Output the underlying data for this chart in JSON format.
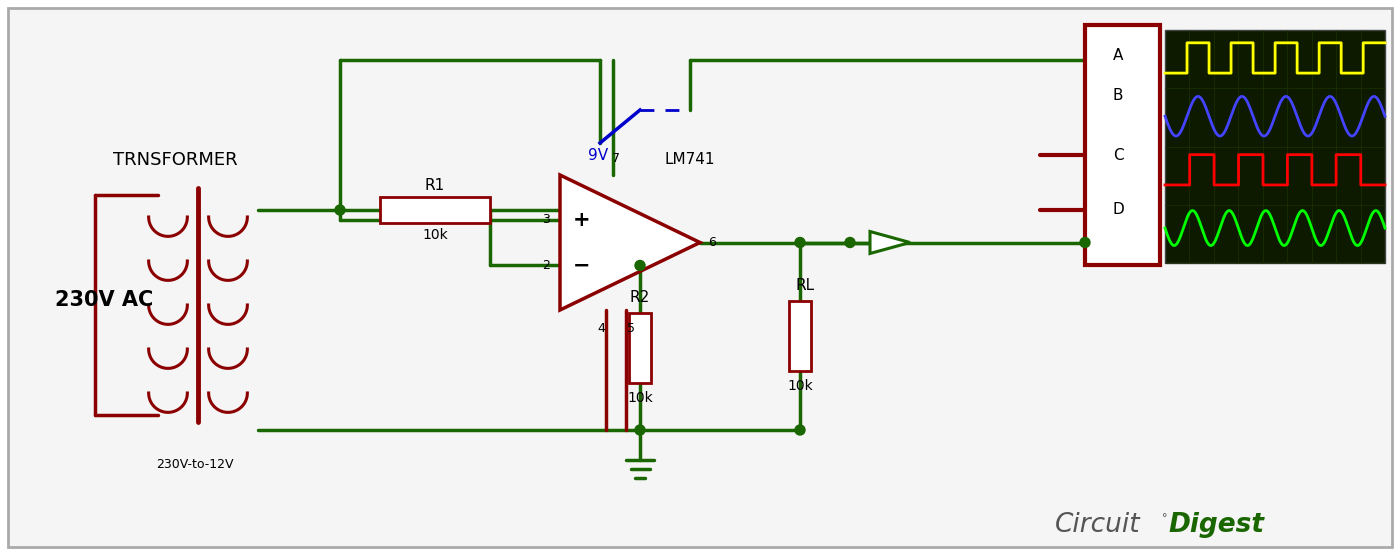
{
  "bg_color": "#f0f0f0",
  "dark_red": "#8B0000",
  "dark_green": "#1a6600",
  "black": "#000000",
  "blue": "#0000cc",
  "label_transformer": "TRNSFORMER",
  "label_230v": "230V AC",
  "label_230to12": "230V-to-12V",
  "label_r1": "R1",
  "label_r1_val": "10k",
  "label_r2": "R2",
  "label_r2_val": "10k",
  "label_rl": "RL",
  "label_rl_val": "10k",
  "label_lm741": "LM741",
  "label_9v": "9V",
  "label_A": "A",
  "label_B": "B",
  "label_C": "C",
  "label_D": "D",
  "pin3": "3",
  "pin2": "2",
  "pin6": "6",
  "pin7": "7",
  "pin4": "4",
  "pin5": "5",
  "brand_circuit": "Circuit",
  "brand_digest": "Digest"
}
